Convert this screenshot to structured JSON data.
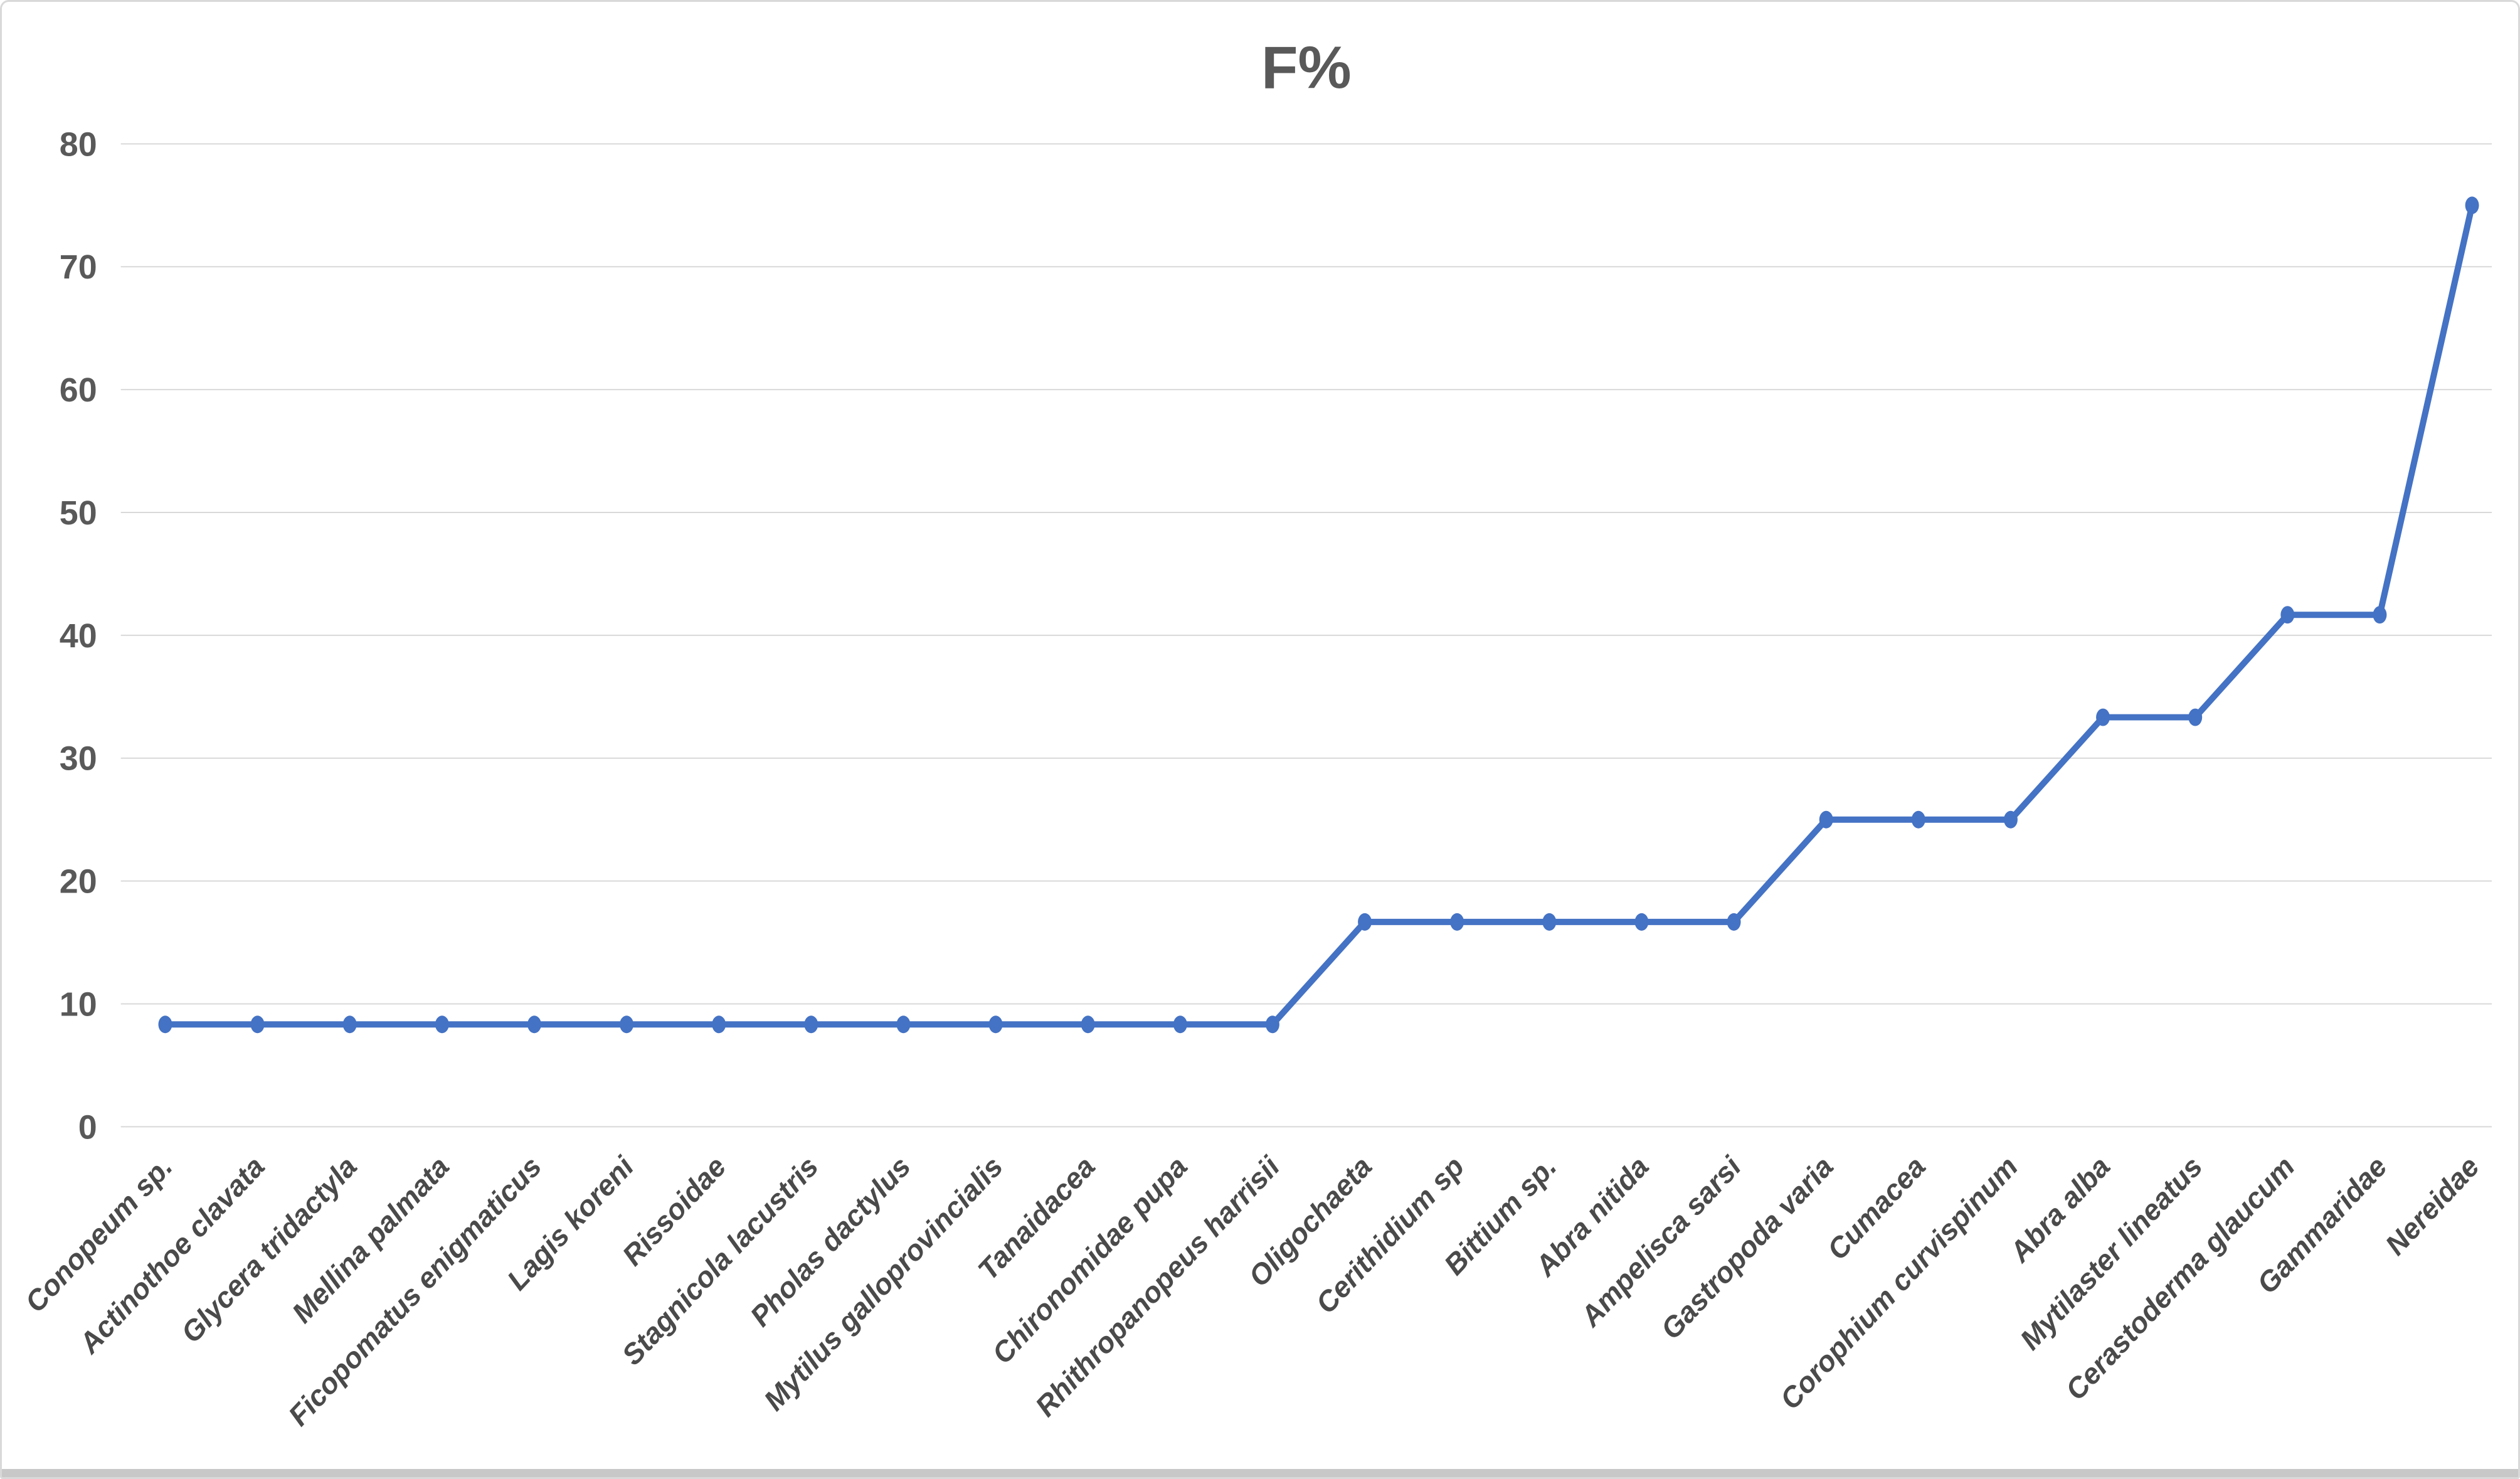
{
  "chart_data": {
    "type": "line",
    "title": "F%",
    "series_name": "F%",
    "categories": [
      "Conopeum sp.",
      "Actinothoe clavata",
      "Glycera tridactyla",
      "Mellina palmata",
      "Ficopomatus enigmaticus",
      "Lagis koreni",
      "Rissoidae",
      "Stagnicola lacustris",
      "Pholas dactylus",
      "Mytilus galloprovincialis",
      "Tanaidacea",
      "Chironomidae pupa",
      "Rhithropanopeus harrisii",
      "Oligochaeta",
      "Cerithidium sp",
      "Bittium sp.",
      "Abra nitida",
      "Ampelisca sarsi",
      "Gastropoda varia",
      "Cumacea",
      "Corophium curvispinum",
      "Abra alba",
      "Mytilaster lineatus",
      "Cerastoderma glaucum",
      "Gammaridae",
      "Nereidae"
    ],
    "values": [
      8.33,
      8.33,
      8.33,
      8.33,
      8.33,
      8.33,
      8.33,
      8.33,
      8.33,
      8.33,
      8.33,
      8.33,
      8.33,
      16.67,
      16.67,
      16.67,
      16.67,
      16.67,
      25,
      25,
      25,
      33.33,
      33.33,
      41.67,
      41.67,
      75
    ],
    "xlabel": "",
    "ylabel": "",
    "ylim": [
      0,
      80
    ],
    "yticks": [
      0,
      10,
      20,
      30,
      40,
      50,
      60,
      70,
      80
    ],
    "grid": "horizontal",
    "legend": "none",
    "marker": "circle",
    "colors": {
      "line": "#4472C4",
      "marker": "#4472C4",
      "gridline": "#D9D9D9",
      "axis_text": "#595959",
      "category_text": "#4A4A4A",
      "title_text": "#595959",
      "frame_border": "#D9D9D9",
      "bottom_edge": "#C8C8C8",
      "background": "#FFFFFF"
    }
  }
}
